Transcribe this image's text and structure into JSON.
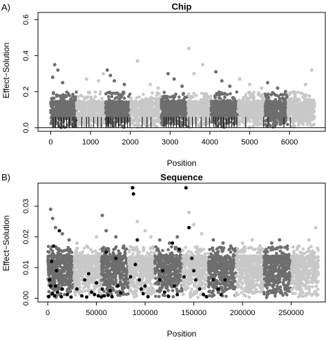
{
  "chart_data": [
    {
      "type": "scatter",
      "panel_label": "A)",
      "title": "Chip",
      "xlabel": "Position",
      "ylabel": "Effect−Solution",
      "xlim": [
        -320,
        6900
      ],
      "ylim": [
        -0.02,
        0.64
      ],
      "xticks": [
        0,
        1000,
        2000,
        3000,
        4000,
        5000,
        6000
      ],
      "xtick_labels": [
        "0",
        "1000",
        "2000",
        "3000",
        "4000",
        "5000",
        "6000"
      ],
      "yticks": [
        0.0,
        0.2,
        0.4,
        0.6
      ],
      "ytick_labels": [
        "0.0",
        "0.2",
        "0.4",
        "0.6"
      ],
      "hline": 0,
      "grid": false,
      "groups": [
        {
          "start": 0,
          "end": 650,
          "color": "#6e6e6e",
          "peaks": [
            [
              100,
              0.35
            ],
            [
              180,
              0.32
            ],
            [
              50,
              0.28
            ],
            [
              300,
              0.25
            ]
          ]
        },
        {
          "start": 650,
          "end": 1380,
          "color": "#c8c8c8",
          "peaks": [
            [
              900,
              0.27
            ],
            [
              1200,
              0.26
            ],
            [
              1320,
              0.3
            ]
          ]
        },
        {
          "start": 1380,
          "end": 2000,
          "color": "#6e6e6e",
          "peaks": [
            [
              1420,
              0.32
            ],
            [
              1500,
              0.29
            ],
            [
              1600,
              0.26
            ],
            [
              1850,
              0.24
            ]
          ]
        },
        {
          "start": 2000,
          "end": 2780,
          "color": "#c8c8c8",
          "peaks": [
            [
              2180,
              0.37
            ],
            [
              2500,
              0.24
            ],
            [
              2700,
              0.22
            ]
          ]
        },
        {
          "start": 2780,
          "end": 3450,
          "color": "#6e6e6e",
          "peaks": [
            [
              2950,
              0.3
            ],
            [
              3100,
              0.27
            ],
            [
              3300,
              0.23
            ]
          ]
        },
        {
          "start": 3450,
          "end": 4030,
          "color": "#c8c8c8",
          "peaks": [
            [
              3470,
              0.44
            ],
            [
              3600,
              0.3
            ],
            [
              3820,
              0.35
            ]
          ]
        },
        {
          "start": 4030,
          "end": 4700,
          "color": "#6e6e6e",
          "peaks": [
            [
              4150,
              0.31
            ],
            [
              4300,
              0.26
            ],
            [
              4500,
              0.23
            ]
          ]
        },
        {
          "start": 4700,
          "end": 5390,
          "color": "#c8c8c8",
          "peaks": [
            [
              4750,
              0.27
            ],
            [
              5000,
              0.24
            ],
            [
              5300,
              0.22
            ]
          ]
        },
        {
          "start": 5390,
          "end": 5960,
          "color": "#6e6e6e",
          "peaks": [
            [
              5450,
              0.25
            ],
            [
              5700,
              0.22
            ],
            [
              5900,
              0.2
            ]
          ]
        },
        {
          "start": 5960,
          "end": 6630,
          "color": "#c8c8c8",
          "peaks": [
            [
              6100,
              0.2
            ],
            [
              6400,
              0.24
            ],
            [
              6560,
              0.32
            ]
          ]
        }
      ],
      "rug": [
        60,
        120,
        200,
        260,
        330,
        400,
        470,
        560,
        610,
        640,
        780,
        900,
        960,
        1080,
        1180,
        1270,
        1390,
        1430,
        1460,
        1510,
        1560,
        1640,
        1700,
        1780,
        1860,
        1930,
        1990,
        2300,
        2420,
        2520,
        2850,
        2900,
        2960,
        3020,
        3080,
        3160,
        3230,
        3330,
        3400,
        3470,
        3560,
        3650,
        3780,
        3900,
        3990,
        4100,
        4150,
        4210,
        4280,
        4340,
        4420,
        4480,
        4550,
        4610,
        4680,
        4900,
        5350,
        5460,
        5860,
        6020
      ]
    },
    {
      "type": "scatter",
      "panel_label": "B)",
      "title": "Sequence",
      "xlabel": "Position",
      "ylabel": "Effect−Solution",
      "xlim": [
        -10000,
        285000
      ],
      "ylim": [
        -0.0012,
        0.0375
      ],
      "xticks": [
        0,
        50000,
        100000,
        150000,
        200000,
        250000
      ],
      "xtick_labels": [
        "0",
        "50000",
        "100000",
        "150000",
        "200000",
        "250000"
      ],
      "yticks": [
        0.0,
        0.01,
        0.02,
        0.03
      ],
      "ytick_labels": [
        "0.00",
        "0.01",
        "0.02",
        "0.03"
      ],
      "grid": false,
      "groups": [
        {
          "start": 0,
          "end": 27000,
          "color": "#6e6e6e",
          "peaks": [
            [
              3000,
              0.029
            ],
            [
              5000,
              0.026
            ],
            [
              8000,
              0.023
            ],
            [
              15000,
              0.021
            ],
            [
              22000,
              0.019
            ]
          ]
        },
        {
          "start": 27000,
          "end": 55000,
          "color": "#c8c8c8",
          "peaks": [
            [
              30000,
              0.018
            ],
            [
              40000,
              0.017
            ],
            [
              50000,
              0.02
            ]
          ]
        },
        {
          "start": 55000,
          "end": 83000,
          "color": "#6e6e6e",
          "peaks": [
            [
              56000,
              0.027
            ],
            [
              60000,
              0.022
            ],
            [
              70000,
              0.02
            ],
            [
              78000,
              0.017
            ]
          ]
        },
        {
          "start": 83000,
          "end": 110000,
          "color": "#c8c8c8",
          "peaks": [
            [
              88000,
              0.036
            ],
            [
              92000,
              0.025
            ],
            [
              100000,
              0.022
            ],
            [
              106000,
              0.02
            ]
          ]
        },
        {
          "start": 110000,
          "end": 138000,
          "color": "#6e6e6e",
          "peaks": [
            [
              115000,
              0.019
            ],
            [
              125000,
              0.018
            ],
            [
              133000,
              0.02
            ]
          ]
        },
        {
          "start": 138000,
          "end": 165000,
          "color": "#c8c8c8",
          "peaks": [
            [
              142000,
              0.036
            ],
            [
              145000,
              0.028
            ],
            [
              150000,
              0.024
            ],
            [
              158000,
              0.021
            ]
          ]
        },
        {
          "start": 165000,
          "end": 193000,
          "color": "#6e6e6e",
          "peaks": [
            [
              170000,
              0.019
            ],
            [
              180000,
              0.018
            ],
            [
              188000,
              0.017
            ]
          ]
        },
        {
          "start": 193000,
          "end": 222000,
          "color": "#c8c8c8",
          "peaks": [
            [
              200000,
              0.018
            ],
            [
              210000,
              0.019
            ],
            [
              218000,
              0.017
            ]
          ]
        },
        {
          "start": 222000,
          "end": 250000,
          "color": "#6e6e6e",
          "peaks": [
            [
              230000,
              0.018
            ],
            [
              238000,
              0.019
            ],
            [
              246000,
              0.017
            ]
          ]
        },
        {
          "start": 250000,
          "end": 278000,
          "color": "#c8c8c8",
          "peaks": [
            [
              258000,
              0.017
            ],
            [
              268000,
              0.019
            ],
            [
              275000,
              0.023
            ]
          ]
        }
      ],
      "highlights": [
        [
          1000,
          0.0005
        ],
        [
          2000,
          0.006
        ],
        [
          3000,
          0.004
        ],
        [
          4000,
          0.012
        ],
        [
          5000,
          0.0015
        ],
        [
          6000,
          0.017
        ],
        [
          7000,
          0.0008
        ],
        [
          8000,
          0.004
        ],
        [
          9000,
          0.009
        ],
        [
          10000,
          0.002
        ],
        [
          12000,
          0.022
        ],
        [
          14000,
          0.0005
        ],
        [
          15000,
          0.003
        ],
        [
          20000,
          0.0012
        ],
        [
          24000,
          0.0004
        ],
        [
          30000,
          0.003
        ],
        [
          35000,
          0.0008
        ],
        [
          38000,
          0.006
        ],
        [
          40000,
          0.0004
        ],
        [
          42000,
          0.008
        ],
        [
          45000,
          0.002
        ],
        [
          48000,
          0.0012
        ],
        [
          50000,
          0.005
        ],
        [
          52000,
          0.0008
        ],
        [
          55000,
          0.0004
        ],
        [
          56000,
          0.003
        ],
        [
          58000,
          0.0008
        ],
        [
          60000,
          0.015
        ],
        [
          62000,
          0.001
        ],
        [
          64000,
          0.0025
        ],
        [
          66000,
          0.0005
        ],
        [
          70000,
          0.013
        ],
        [
          72000,
          0.004
        ],
        [
          75000,
          0.0018
        ],
        [
          85000,
          0.007
        ],
        [
          87000,
          0.036
        ],
        [
          88000,
          0.034
        ],
        [
          90000,
          0.011
        ],
        [
          92000,
          0.019
        ],
        [
          94000,
          0.006
        ],
        [
          96000,
          0.003
        ],
        [
          98000,
          0.0015
        ],
        [
          100000,
          0.004
        ],
        [
          103000,
          0.0005
        ],
        [
          115000,
          0.006
        ],
        [
          118000,
          0.009
        ],
        [
          120000,
          0.002
        ],
        [
          124000,
          0.0006
        ],
        [
          128000,
          0.018
        ],
        [
          130000,
          0.004
        ],
        [
          133000,
          0.0012
        ],
        [
          135000,
          0.016
        ],
        [
          140000,
          0.007
        ],
        [
          142000,
          0.036
        ],
        [
          145000,
          0.023
        ],
        [
          148000,
          0.013
        ],
        [
          150000,
          0.009
        ],
        [
          152000,
          0.006
        ],
        [
          156000,
          0.003
        ],
        [
          160000,
          0.0012
        ],
        [
          163000,
          0.0005
        ],
        [
          170000,
          0.006
        ],
        [
          175000,
          0.003
        ],
        [
          178000,
          0.0012
        ],
        [
          182000,
          0.006
        ]
      ]
    }
  ]
}
